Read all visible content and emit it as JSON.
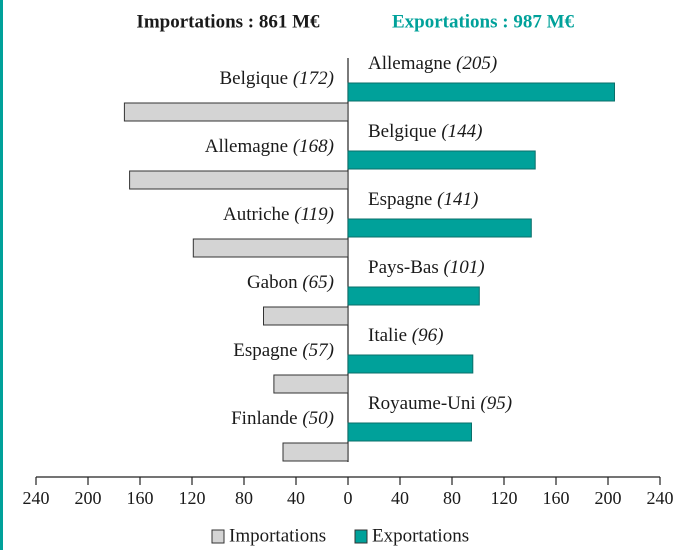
{
  "chart_data": {
    "type": "butterfly",
    "xlim": [
      -240,
      240
    ],
    "xticks": [
      {
        "value": -240,
        "label": "240"
      },
      {
        "value": -200,
        "label": "200"
      },
      {
        "value": -160,
        "label": "160"
      },
      {
        "value": -120,
        "label": "120"
      },
      {
        "value": -80,
        "label": "80"
      },
      {
        "value": -40,
        "label": "40"
      },
      0,
      40,
      80,
      120,
      160,
      200,
      240
    ],
    "series": [
      {
        "name": "Importations",
        "title": "Importations : 861 M€",
        "color": "#d4d4d4",
        "categories": [
          "Belgique",
          "Allemagne",
          "Autriche",
          "Gabon",
          "Espagne",
          "Finlande"
        ],
        "values": [
          172,
          168,
          119,
          65,
          57,
          50
        ],
        "value_labels": [
          "(172)",
          "(168)",
          "(119)",
          "(65)",
          "(57)",
          "(50)"
        ]
      },
      {
        "name": "Exportations",
        "title": "Exportations : 987 M€",
        "color": "#00a19a",
        "categories": [
          "Allemagne",
          "Belgique",
          "Espagne",
          "Pays-Bas",
          "Italie",
          "Royaume-Uni"
        ],
        "values": [
          205,
          144,
          141,
          101,
          96,
          95
        ],
        "value_labels": [
          "(205)",
          "(144)",
          "(141)",
          "(101)",
          "(96)",
          "(95)"
        ]
      }
    ]
  }
}
